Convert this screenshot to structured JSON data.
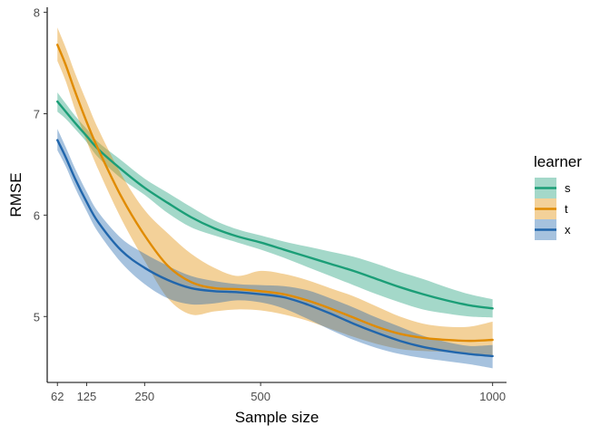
{
  "chart_data": {
    "type": "line",
    "title": "",
    "xlabel": "Sample size",
    "ylabel": "RMSE",
    "xlim": [
      40,
      1030
    ],
    "ylim": [
      4.35,
      8.05
    ],
    "x_ticks": [
      62,
      125,
      250,
      500,
      1000
    ],
    "y_ticks": [
      5,
      6,
      7,
      8
    ],
    "grid": false,
    "legend": {
      "title": "learner",
      "position": "right"
    },
    "series": [
      {
        "name": "s",
        "color": "#1b9e77",
        "x": [
          62,
          80,
          100,
          125,
          150,
          200,
          250,
          300,
          350,
          400,
          450,
          500,
          550,
          600,
          650,
          700,
          750,
          800,
          850,
          900,
          950,
          1000
        ],
        "y": [
          7.12,
          7.02,
          6.91,
          6.78,
          6.65,
          6.45,
          6.27,
          6.12,
          5.98,
          5.87,
          5.79,
          5.73,
          5.66,
          5.59,
          5.52,
          5.45,
          5.37,
          5.29,
          5.22,
          5.16,
          5.11,
          5.08
        ],
        "lower": [
          7.02,
          6.95,
          6.85,
          6.72,
          6.57,
          6.36,
          6.2,
          6.02,
          5.88,
          5.8,
          5.73,
          5.66,
          5.58,
          5.49,
          5.4,
          5.31,
          5.22,
          5.14,
          5.07,
          5.03,
          5.0,
          4.99
        ],
        "upper": [
          7.21,
          7.1,
          6.98,
          6.85,
          6.72,
          6.54,
          6.36,
          6.22,
          6.08,
          5.95,
          5.86,
          5.8,
          5.74,
          5.69,
          5.64,
          5.59,
          5.52,
          5.44,
          5.37,
          5.29,
          5.22,
          5.17
        ]
      },
      {
        "name": "t",
        "color": "#e08b00",
        "x": [
          62,
          80,
          100,
          125,
          150,
          200,
          250,
          300,
          350,
          400,
          450,
          500,
          550,
          600,
          650,
          700,
          750,
          800,
          850,
          900,
          950,
          1000
        ],
        "y": [
          7.68,
          7.48,
          7.22,
          6.92,
          6.65,
          6.18,
          5.8,
          5.5,
          5.34,
          5.28,
          5.27,
          5.25,
          5.22,
          5.16,
          5.08,
          4.99,
          4.9,
          4.83,
          4.79,
          4.77,
          4.76,
          4.77
        ],
        "lower": [
          7.52,
          7.32,
          7.04,
          6.73,
          6.45,
          5.96,
          5.55,
          5.18,
          5.02,
          5.05,
          5.07,
          5.06,
          5.02,
          4.96,
          4.88,
          4.8,
          4.73,
          4.68,
          4.66,
          4.65,
          4.63,
          4.6
        ],
        "upper": [
          7.85,
          7.65,
          7.4,
          7.12,
          6.85,
          6.4,
          6.05,
          5.82,
          5.62,
          5.48,
          5.4,
          5.45,
          5.42,
          5.36,
          5.28,
          5.2,
          5.1,
          5.0,
          4.93,
          4.9,
          4.9,
          4.95
        ]
      },
      {
        "name": "x",
        "color": "#2166ac",
        "x": [
          62,
          80,
          100,
          125,
          150,
          200,
          250,
          300,
          350,
          400,
          450,
          500,
          550,
          600,
          650,
          700,
          750,
          800,
          850,
          900,
          950,
          1000
        ],
        "y": [
          6.74,
          6.57,
          6.36,
          6.13,
          5.93,
          5.65,
          5.48,
          5.36,
          5.28,
          5.25,
          5.24,
          5.22,
          5.19,
          5.12,
          5.03,
          4.93,
          4.84,
          4.76,
          4.7,
          4.66,
          4.63,
          4.61
        ],
        "lower": [
          6.64,
          6.48,
          6.27,
          6.04,
          5.83,
          5.53,
          5.32,
          5.18,
          5.12,
          5.13,
          5.16,
          5.14,
          5.08,
          4.98,
          4.87,
          4.77,
          4.69,
          4.63,
          4.59,
          4.56,
          4.53,
          4.49
        ],
        "upper": [
          6.85,
          6.67,
          6.46,
          6.23,
          6.03,
          5.77,
          5.62,
          5.5,
          5.4,
          5.35,
          5.32,
          5.31,
          5.3,
          5.26,
          5.18,
          5.09,
          4.99,
          4.9,
          4.81,
          4.75,
          4.71,
          4.72
        ]
      }
    ]
  }
}
